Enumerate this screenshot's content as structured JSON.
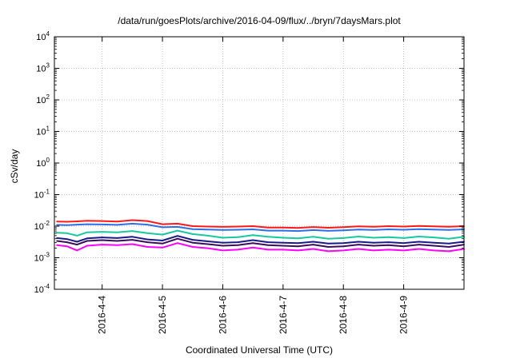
{
  "chart_data": {
    "type": "line",
    "title": "/data/run/goesPlots/archive/2016-04-09/flux/../bryn/7daysMars.plot",
    "xlabel": "Coordinated Universal Time (UTC)",
    "ylabel": "cSv/day",
    "y_scale": "log",
    "ylim": [
      0.0001,
      10000
    ],
    "xlim": [
      "2016-04-03 05:00",
      "2016-04-10 00:00"
    ],
    "x_ticks": [
      "2016-04-04",
      "2016-04-05",
      "2016-04-06",
      "2016-04-07",
      "2016-04-08",
      "2016-04-09"
    ],
    "x_tick_labels": [
      "2016-4-4",
      "2016-4-5",
      "2016-4-6",
      "2016-4-7",
      "2016-4-8",
      "2016-4-9"
    ],
    "y_tick_labels": [
      {
        "base": "10",
        "exp": "-4"
      },
      {
        "base": "10",
        "exp": "-3"
      },
      {
        "base": "10",
        "exp": "-2"
      },
      {
        "base": "10",
        "exp": "-1"
      },
      {
        "base": "10",
        "exp": "0"
      },
      {
        "base": "10",
        "exp": "1"
      },
      {
        "base": "10",
        "exp": "2"
      },
      {
        "base": "10",
        "exp": "3"
      },
      {
        "base": "10",
        "exp": "4"
      }
    ],
    "grid": true,
    "series": [
      {
        "color": "#ff00ff",
        "values": [
          [
            "2016-04-03 06:00",
            0.0025
          ],
          [
            "2016-04-03 10:00",
            0.0023
          ],
          [
            "2016-04-03 14:00",
            0.0017
          ],
          [
            "2016-04-03 18:00",
            0.0024
          ],
          [
            "2016-04-04 00:00",
            0.0026
          ],
          [
            "2016-04-04 06:00",
            0.0025
          ],
          [
            "2016-04-04 12:00",
            0.0027
          ],
          [
            "2016-04-04 18:00",
            0.0022
          ],
          [
            "2016-04-05 00:00",
            0.0021
          ],
          [
            "2016-04-05 06:00",
            0.0029
          ],
          [
            "2016-04-05 12:00",
            0.0022
          ],
          [
            "2016-04-05 18:00",
            0.002
          ],
          [
            "2016-04-06 00:00",
            0.0017
          ],
          [
            "2016-04-06 06:00",
            0.0018
          ],
          [
            "2016-04-06 12:00",
            0.0021
          ],
          [
            "2016-04-06 18:00",
            0.0018
          ],
          [
            "2016-04-07 00:00",
            0.0018
          ],
          [
            "2016-04-07 06:00",
            0.0017
          ],
          [
            "2016-04-07 12:00",
            0.0019
          ],
          [
            "2016-04-07 18:00",
            0.0016
          ],
          [
            "2016-04-08 00:00",
            0.0017
          ],
          [
            "2016-04-08 06:00",
            0.0019
          ],
          [
            "2016-04-08 12:00",
            0.0017
          ],
          [
            "2016-04-08 18:00",
            0.0018
          ],
          [
            "2016-04-09 00:00",
            0.0017
          ],
          [
            "2016-04-09 06:00",
            0.0019
          ],
          [
            "2016-04-09 12:00",
            0.0017
          ],
          [
            "2016-04-09 18:00",
            0.0016
          ],
          [
            "2016-04-10 00:00",
            0.0019
          ]
        ]
      },
      {
        "color": "#3a0e5a",
        "values": [
          [
            "2016-04-03 06:00",
            0.0034
          ],
          [
            "2016-04-03 10:00",
            0.0031
          ],
          [
            "2016-04-03 14:00",
            0.0026
          ],
          [
            "2016-04-03 18:00",
            0.0034
          ],
          [
            "2016-04-04 00:00",
            0.0036
          ],
          [
            "2016-04-04 06:00",
            0.0034
          ],
          [
            "2016-04-04 12:00",
            0.0037
          ],
          [
            "2016-04-04 18:00",
            0.0031
          ],
          [
            "2016-04-05 00:00",
            0.0028
          ],
          [
            "2016-04-05 06:00",
            0.004
          ],
          [
            "2016-04-05 12:00",
            0.003
          ],
          [
            "2016-04-05 18:00",
            0.0027
          ],
          [
            "2016-04-06 00:00",
            0.0024
          ],
          [
            "2016-04-06 06:00",
            0.0025
          ],
          [
            "2016-04-06 12:00",
            0.0029
          ],
          [
            "2016-04-06 18:00",
            0.0025
          ],
          [
            "2016-04-07 00:00",
            0.0024
          ],
          [
            "2016-04-07 06:00",
            0.0023
          ],
          [
            "2016-04-07 12:00",
            0.0026
          ],
          [
            "2016-04-07 18:00",
            0.0022
          ],
          [
            "2016-04-08 00:00",
            0.0023
          ],
          [
            "2016-04-08 06:00",
            0.0026
          ],
          [
            "2016-04-08 12:00",
            0.0024
          ],
          [
            "2016-04-08 18:00",
            0.0025
          ],
          [
            "2016-04-09 00:00",
            0.0023
          ],
          [
            "2016-04-09 06:00",
            0.0026
          ],
          [
            "2016-04-09 12:00",
            0.0024
          ],
          [
            "2016-04-09 18:00",
            0.0022
          ],
          [
            "2016-04-10 00:00",
            0.0026
          ]
        ]
      },
      {
        "color": "#1a1a8c",
        "values": [
          [
            "2016-04-03 06:00",
            0.0042
          ],
          [
            "2016-04-03 10:00",
            0.0039
          ],
          [
            "2016-04-03 14:00",
            0.0032
          ],
          [
            "2016-04-03 18:00",
            0.0041
          ],
          [
            "2016-04-04 00:00",
            0.0044
          ],
          [
            "2016-04-04 06:00",
            0.0042
          ],
          [
            "2016-04-04 12:00",
            0.0046
          ],
          [
            "2016-04-04 18:00",
            0.0038
          ],
          [
            "2016-04-05 00:00",
            0.0035
          ],
          [
            "2016-04-05 06:00",
            0.0049
          ],
          [
            "2016-04-05 12:00",
            0.0037
          ],
          [
            "2016-04-05 18:00",
            0.0033
          ],
          [
            "2016-04-06 00:00",
            0.003
          ],
          [
            "2016-04-06 06:00",
            0.0031
          ],
          [
            "2016-04-06 12:00",
            0.0036
          ],
          [
            "2016-04-06 18:00",
            0.0031
          ],
          [
            "2016-04-07 00:00",
            0.003
          ],
          [
            "2016-04-07 06:00",
            0.0029
          ],
          [
            "2016-04-07 12:00",
            0.0032
          ],
          [
            "2016-04-07 18:00",
            0.0028
          ],
          [
            "2016-04-08 00:00",
            0.0029
          ],
          [
            "2016-04-08 06:00",
            0.0032
          ],
          [
            "2016-04-08 12:00",
            0.003
          ],
          [
            "2016-04-08 18:00",
            0.0031
          ],
          [
            "2016-04-09 00:00",
            0.0029
          ],
          [
            "2016-04-09 06:00",
            0.0032
          ],
          [
            "2016-04-09 12:00",
            0.003
          ],
          [
            "2016-04-09 18:00",
            0.0028
          ],
          [
            "2016-04-10 00:00",
            0.0032
          ]
        ]
      },
      {
        "color": "#18c8a0",
        "values": [
          [
            "2016-04-03 06:00",
            0.0062
          ],
          [
            "2016-04-03 10:00",
            0.006
          ],
          [
            "2016-04-03 14:00",
            0.005
          ],
          [
            "2016-04-03 18:00",
            0.0064
          ],
          [
            "2016-04-04 00:00",
            0.0066
          ],
          [
            "2016-04-04 06:00",
            0.0064
          ],
          [
            "2016-04-04 12:00",
            0.007
          ],
          [
            "2016-04-04 18:00",
            0.006
          ],
          [
            "2016-04-05 00:00",
            0.0054
          ],
          [
            "2016-04-05 06:00",
            0.0072
          ],
          [
            "2016-04-05 12:00",
            0.0056
          ],
          [
            "2016-04-05 18:00",
            0.005
          ],
          [
            "2016-04-06 00:00",
            0.0043
          ],
          [
            "2016-04-06 06:00",
            0.0045
          ],
          [
            "2016-04-06 12:00",
            0.0052
          ],
          [
            "2016-04-06 18:00",
            0.0046
          ],
          [
            "2016-04-07 00:00",
            0.0043
          ],
          [
            "2016-04-07 06:00",
            0.0041
          ],
          [
            "2016-04-07 12:00",
            0.0046
          ],
          [
            "2016-04-07 18:00",
            0.004
          ],
          [
            "2016-04-08 00:00",
            0.0042
          ],
          [
            "2016-04-08 06:00",
            0.0047
          ],
          [
            "2016-04-08 12:00",
            0.0043
          ],
          [
            "2016-04-08 18:00",
            0.0045
          ],
          [
            "2016-04-09 00:00",
            0.0042
          ],
          [
            "2016-04-09 06:00",
            0.0047
          ],
          [
            "2016-04-09 12:00",
            0.0044
          ],
          [
            "2016-04-09 18:00",
            0.004
          ],
          [
            "2016-04-10 00:00",
            0.0046
          ]
        ]
      },
      {
        "color": "#2f6fe6",
        "values": [
          [
            "2016-04-03 06:00",
            0.011
          ],
          [
            "2016-04-03 10:00",
            0.0108
          ],
          [
            "2016-04-03 14:00",
            0.0112
          ],
          [
            "2016-04-03 18:00",
            0.0115
          ],
          [
            "2016-04-04 00:00",
            0.0113
          ],
          [
            "2016-04-04 06:00",
            0.011
          ],
          [
            "2016-04-04 12:00",
            0.012
          ],
          [
            "2016-04-04 18:00",
            0.0112
          ],
          [
            "2016-04-05 00:00",
            0.0092
          ],
          [
            "2016-04-05 06:00",
            0.0095
          ],
          [
            "2016-04-05 12:00",
            0.008
          ],
          [
            "2016-04-05 18:00",
            0.0078
          ],
          [
            "2016-04-06 00:00",
            0.0076
          ],
          [
            "2016-04-06 06:00",
            0.0077
          ],
          [
            "2016-04-06 12:00",
            0.0079
          ],
          [
            "2016-04-06 18:00",
            0.0072
          ],
          [
            "2016-04-07 00:00",
            0.0072
          ],
          [
            "2016-04-07 06:00",
            0.007
          ],
          [
            "2016-04-07 12:00",
            0.0075
          ],
          [
            "2016-04-07 18:00",
            0.0071
          ],
          [
            "2016-04-08 00:00",
            0.0074
          ],
          [
            "2016-04-08 06:00",
            0.0078
          ],
          [
            "2016-04-08 12:00",
            0.0076
          ],
          [
            "2016-04-08 18:00",
            0.0079
          ],
          [
            "2016-04-09 00:00",
            0.0077
          ],
          [
            "2016-04-09 06:00",
            0.008
          ],
          [
            "2016-04-09 12:00",
            0.0078
          ],
          [
            "2016-04-09 18:00",
            0.0076
          ],
          [
            "2016-04-10 00:00",
            0.0079
          ]
        ]
      },
      {
        "color": "#ff1a1a",
        "values": [
          [
            "2016-04-03 06:00",
            0.014
          ],
          [
            "2016-04-03 10:00",
            0.0138
          ],
          [
            "2016-04-03 14:00",
            0.0142
          ],
          [
            "2016-04-03 18:00",
            0.0148
          ],
          [
            "2016-04-04 00:00",
            0.0145
          ],
          [
            "2016-04-04 06:00",
            0.014
          ],
          [
            "2016-04-04 12:00",
            0.0155
          ],
          [
            "2016-04-04 18:00",
            0.0145
          ],
          [
            "2016-04-05 00:00",
            0.0115
          ],
          [
            "2016-04-05 06:00",
            0.012
          ],
          [
            "2016-04-05 12:00",
            0.01
          ],
          [
            "2016-04-05 18:00",
            0.0097
          ],
          [
            "2016-04-06 00:00",
            0.0095
          ],
          [
            "2016-04-06 06:00",
            0.0097
          ],
          [
            "2016-04-06 12:00",
            0.01
          ],
          [
            "2016-04-06 18:00",
            0.009
          ],
          [
            "2016-04-07 00:00",
            0.009
          ],
          [
            "2016-04-07 06:00",
            0.0088
          ],
          [
            "2016-04-07 12:00",
            0.0094
          ],
          [
            "2016-04-07 18:00",
            0.0089
          ],
          [
            "2016-04-08 00:00",
            0.0093
          ],
          [
            "2016-04-08 06:00",
            0.0098
          ],
          [
            "2016-04-08 12:00",
            0.0096
          ],
          [
            "2016-04-08 18:00",
            0.01
          ],
          [
            "2016-04-09 00:00",
            0.0097
          ],
          [
            "2016-04-09 06:00",
            0.0101
          ],
          [
            "2016-04-09 12:00",
            0.0098
          ],
          [
            "2016-04-09 18:00",
            0.0096
          ],
          [
            "2016-04-10 00:00",
            0.01
          ]
        ]
      }
    ]
  }
}
